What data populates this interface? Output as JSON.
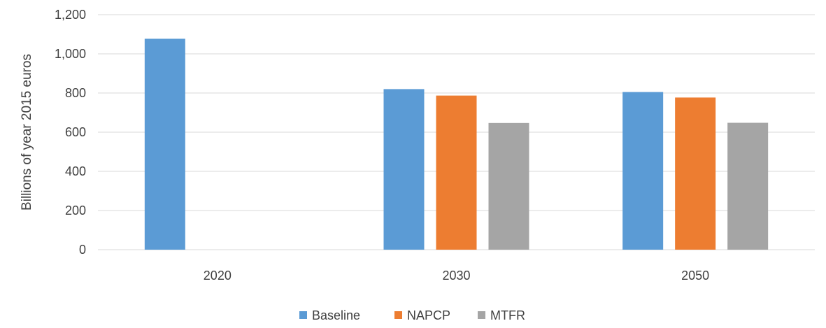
{
  "chart_data": {
    "type": "bar",
    "title": "",
    "xlabel": "",
    "ylabel": "Billions of year 2015 euros",
    "categories": [
      "2020",
      "2030",
      "2050"
    ],
    "series": [
      {
        "name": "Baseline",
        "color": "#5b9bd5",
        "values": [
          1077,
          820,
          805
        ]
      },
      {
        "name": "NAPCP",
        "color": "#ed7d31",
        "values": [
          null,
          787,
          777
        ]
      },
      {
        "name": "MTFR",
        "color": "#a5a5a5",
        "values": [
          null,
          647,
          648
        ]
      }
    ],
    "ylim": [
      0,
      1200
    ],
    "yticks": [
      0,
      200,
      400,
      600,
      800,
      1000,
      1200
    ],
    "ytick_labels": [
      "0",
      "200",
      "400",
      "600",
      "800",
      "1,000",
      "1,200"
    ],
    "grid": true,
    "legend_position": "bottom"
  }
}
